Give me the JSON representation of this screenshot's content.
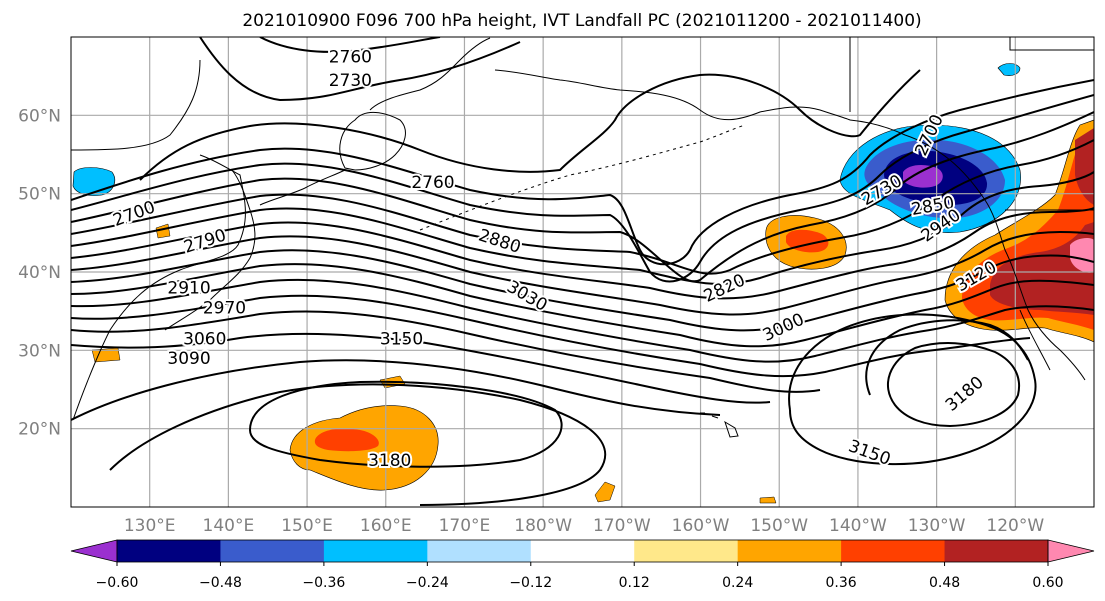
{
  "title": "2021010900 F096 700 hPa height, IVT Landfall PC (2021011200 - 2021011400)",
  "map": {
    "lon_range": [
      120,
      250
    ],
    "lat_range": [
      10,
      70
    ],
    "lat_ticks": [
      {
        "lat": 60,
        "label": "60°N"
      },
      {
        "lat": 50,
        "label": "50°N"
      },
      {
        "lat": 40,
        "label": "40°N"
      },
      {
        "lat": 30,
        "label": "30°N"
      },
      {
        "lat": 20,
        "label": "20°N"
      }
    ],
    "lon_ticks": [
      {
        "lon": 130,
        "label": "130°E"
      },
      {
        "lon": 140,
        "label": "140°E"
      },
      {
        "lon": 150,
        "label": "150°E"
      },
      {
        "lon": 160,
        "label": "160°E"
      },
      {
        "lon": 170,
        "label": "170°E"
      },
      {
        "lon": 180,
        "label": "180°W"
      },
      {
        "lon": 190,
        "label": "170°W"
      },
      {
        "lon": 200,
        "label": "160°W"
      },
      {
        "lon": 210,
        "label": "150°W"
      },
      {
        "lon": 220,
        "label": "140°W"
      },
      {
        "lon": 230,
        "label": "130°W"
      },
      {
        "lon": 240,
        "label": "120°W"
      }
    ],
    "contour_labels": [
      {
        "text": "2760",
        "lon": 155.5,
        "lat": 67.5,
        "rot": 0
      },
      {
        "text": "2730",
        "lon": 155.5,
        "lat": 64.5,
        "rot": 0
      },
      {
        "text": "2760",
        "lon": 166,
        "lat": 51.5,
        "rot": 0
      },
      {
        "text": "2700",
        "lon": 128,
        "lat": 47.5,
        "rot": -20
      },
      {
        "text": "2790",
        "lon": 137,
        "lat": 44,
        "rot": -18
      },
      {
        "text": "2910",
        "lon": 135,
        "lat": 38,
        "rot": 0
      },
      {
        "text": "2970",
        "lon": 139.5,
        "lat": 35.5,
        "rot": 0
      },
      {
        "text": "3060",
        "lon": 137,
        "lat": 31.5,
        "rot": 0
      },
      {
        "text": "3090",
        "lon": 135,
        "lat": 29,
        "rot": 0
      },
      {
        "text": "3150",
        "lon": 162,
        "lat": 31.5,
        "rot": 0
      },
      {
        "text": "3180",
        "lon": 160.5,
        "lat": 16,
        "rot": 0
      },
      {
        "text": "2880",
        "lon": 174.5,
        "lat": 44,
        "rot": 18
      },
      {
        "text": "3030",
        "lon": 178,
        "lat": 37,
        "rot": 30
      },
      {
        "text": "2820",
        "lon": 203,
        "lat": 38,
        "rot": -25
      },
      {
        "text": "3000",
        "lon": 210.5,
        "lat": 33,
        "rot": -25
      },
      {
        "text": "2730",
        "lon": 223,
        "lat": 50.5,
        "rot": -30
      },
      {
        "text": "2700",
        "lon": 229,
        "lat": 57.5,
        "rot": -65
      },
      {
        "text": "2850",
        "lon": 229.5,
        "lat": 48.5,
        "rot": -10
      },
      {
        "text": "2940",
        "lon": 230.5,
        "lat": 46,
        "rot": -35
      },
      {
        "text": "3120",
        "lon": 235,
        "lat": 39.5,
        "rot": -30
      },
      {
        "text": "3180",
        "lon": 233.5,
        "lat": 24.5,
        "rot": -40
      },
      {
        "text": "3150",
        "lon": 221.5,
        "lat": 17,
        "rot": 20
      }
    ]
  },
  "colorbar": {
    "colors": [
      "#9b30d0",
      "#000080",
      "#3a5ccc",
      "#00bfff",
      "#b0e0ff",
      "#ffffff",
      "#ffe88a",
      "#ffa500",
      "#ff4000",
      "#b22222",
      "#ff88b0"
    ],
    "ticks": [
      "−0.60",
      "−0.48",
      "−0.36",
      "−0.24",
      "−0.12",
      "0.12",
      "0.24",
      "0.36",
      "0.48",
      "0.60"
    ]
  }
}
